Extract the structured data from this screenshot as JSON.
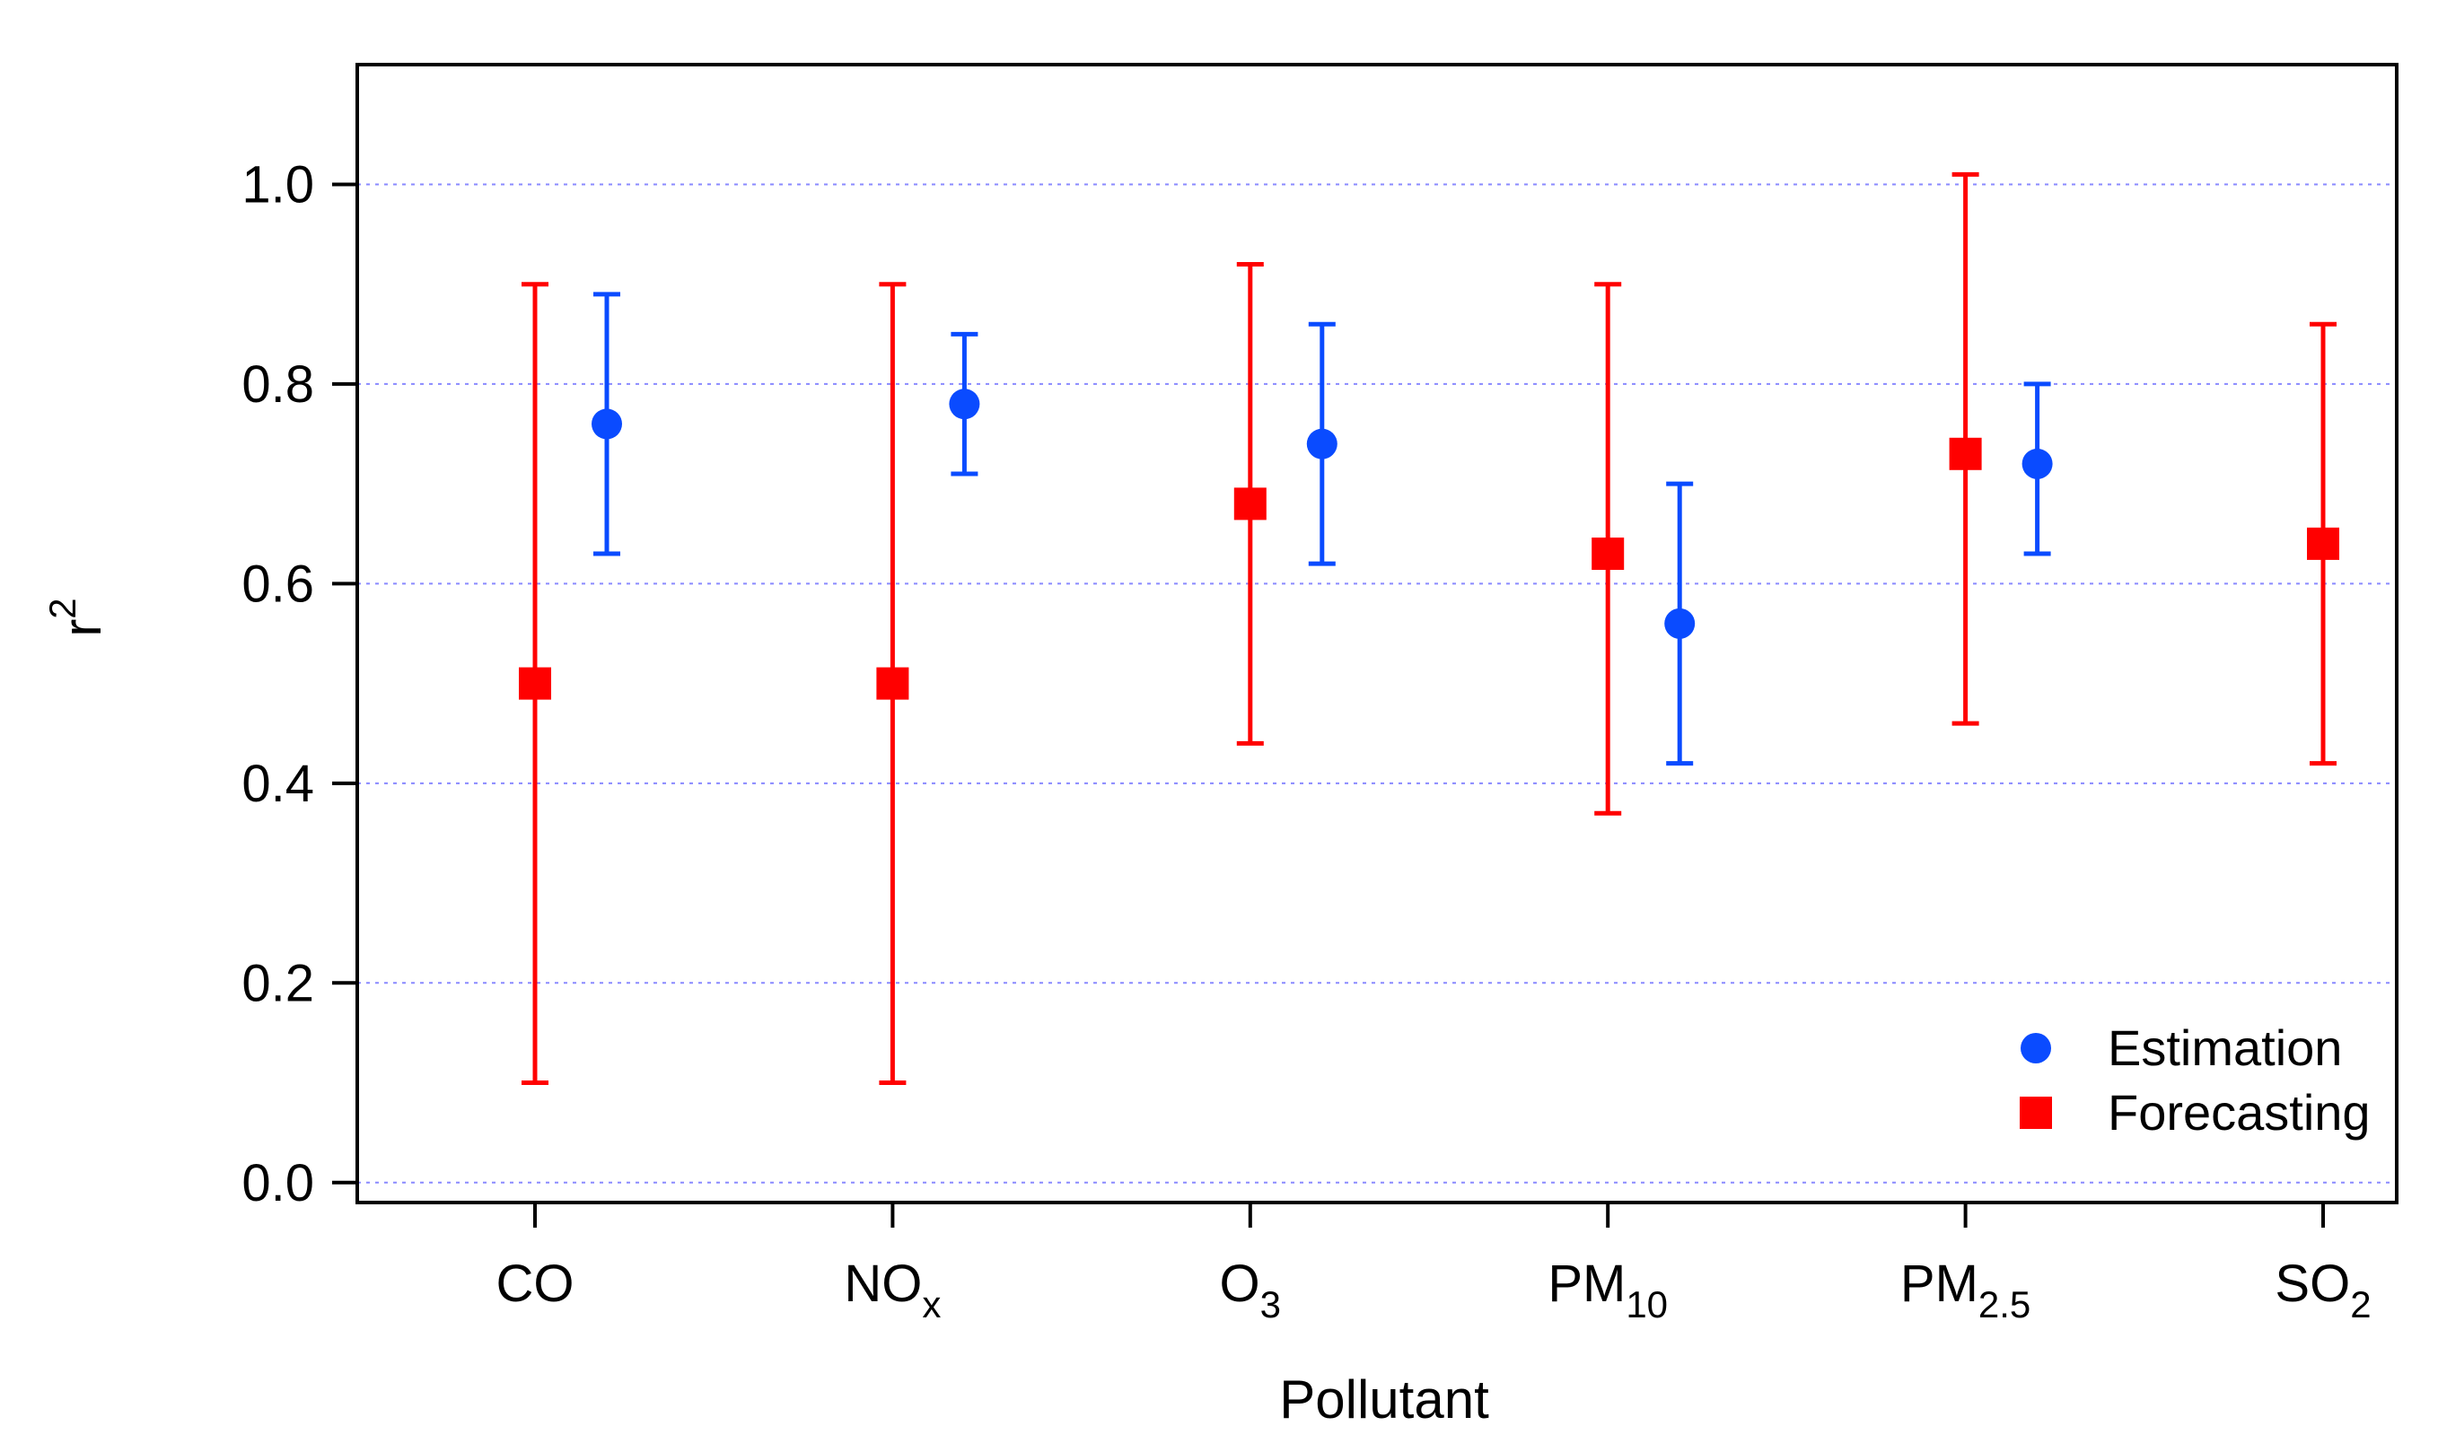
{
  "chart_data": {
    "type": "scatter",
    "title": "",
    "xlabel": "Pollutant",
    "ylabel": "r",
    "ylabel_superscript": "2",
    "ylim": [
      -0.02,
      1.12
    ],
    "yticks": [
      0.0,
      0.2,
      0.4,
      0.6,
      0.8,
      1.0
    ],
    "ytick_labels": [
      "0.0",
      "0.2",
      "0.4",
      "0.6",
      "0.8",
      "1.0"
    ],
    "grid": "horizontal dotted",
    "categories": [
      {
        "base": "CO",
        "sub": ""
      },
      {
        "base": "NO",
        "sub": "x"
      },
      {
        "base": "O",
        "sub": "3"
      },
      {
        "base": "PM",
        "sub": "10"
      },
      {
        "base": "PM",
        "sub": "2.5"
      },
      {
        "base": "SO",
        "sub": "2"
      }
    ],
    "series": [
      {
        "name": "Estimation",
        "color": "#0a4bff",
        "marker": "circle",
        "values": [
          0.76,
          0.78,
          0.74,
          0.56,
          0.72,
          null
        ],
        "lower": [
          0.63,
          0.71,
          0.62,
          0.42,
          0.63,
          null
        ],
        "upper": [
          0.89,
          0.85,
          0.86,
          0.7,
          0.8,
          null
        ]
      },
      {
        "name": "Forecasting",
        "color": "#ff0000",
        "marker": "square",
        "values": [
          0.5,
          0.5,
          0.68,
          0.63,
          0.73,
          0.64
        ],
        "lower": [
          0.1,
          0.1,
          0.44,
          0.37,
          0.46,
          0.42
        ],
        "upper": [
          0.9,
          0.9,
          0.92,
          0.9,
          1.01,
          0.86
        ]
      }
    ],
    "legend_position": "bottom-right"
  }
}
